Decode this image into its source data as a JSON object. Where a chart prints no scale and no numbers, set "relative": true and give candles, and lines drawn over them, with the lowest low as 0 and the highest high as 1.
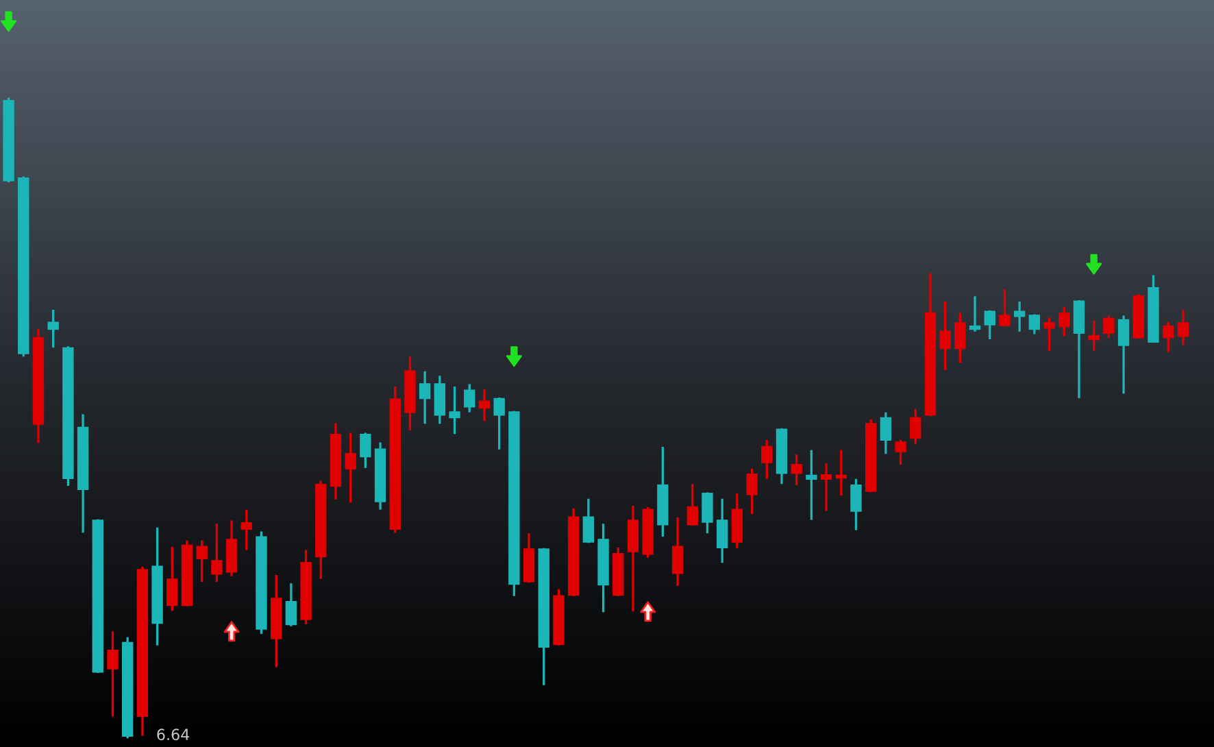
{
  "chart_data": {
    "type": "candlestick",
    "relative": true,
    "categories": [
      null,
      null,
      null,
      null,
      null,
      null,
      null,
      null,
      null,
      null,
      null,
      null,
      null,
      null,
      null,
      null,
      null,
      null,
      null,
      null,
      null,
      null,
      null,
      null,
      null,
      null,
      null,
      null,
      null,
      null,
      null,
      null,
      null,
      null,
      null,
      null,
      null,
      null,
      null,
      null,
      null,
      null,
      null,
      null,
      null,
      null,
      null,
      null,
      null,
      null,
      null,
      null,
      null,
      null,
      null,
      null,
      null,
      null,
      null,
      null,
      null,
      null,
      null,
      null,
      null,
      null,
      null,
      null,
      null,
      null,
      null,
      null,
      null,
      null,
      null,
      null,
      null,
      null,
      null,
      null
    ],
    "ohlc": [
      [
        0.995,
        1.0,
        0.868,
        0.871
      ],
      [
        0.874,
        0.877,
        0.596,
        0.601
      ],
      [
        0.491,
        0.639,
        0.461,
        0.625
      ],
      [
        0.649,
        0.669,
        0.61,
        0.639
      ],
      [
        0.609,
        0.612,
        0.394,
        0.406
      ],
      [
        0.485,
        0.506,
        0.321,
        0.389
      ],
      [
        0.34,
        0.342,
        0.102,
        0.104
      ],
      [
        0.109,
        0.167,
        0.034,
        0.137
      ],
      [
        0.149,
        0.158,
        0.0,
        0.004
      ],
      [
        0.035,
        0.268,
        0.004,
        0.263
      ],
      [
        0.268,
        0.329,
        0.145,
        0.18
      ],
      [
        0.208,
        0.299,
        0.199,
        0.248
      ],
      [
        0.208,
        0.309,
        0.206,
        0.301
      ],
      [
        0.281,
        0.309,
        0.244,
        0.299
      ],
      [
        0.257,
        0.335,
        0.244,
        0.277
      ],
      [
        0.26,
        0.34,
        0.253,
        0.31
      ],
      [
        0.327,
        0.357,
        0.294,
        0.336
      ],
      [
        0.314,
        0.323,
        0.163,
        0.171
      ],
      [
        0.156,
        0.255,
        0.111,
        0.218
      ],
      [
        0.213,
        0.242,
        0.175,
        0.178
      ],
      [
        0.186,
        0.294,
        0.178,
        0.274
      ],
      [
        0.284,
        0.402,
        0.249,
        0.396
      ],
      [
        0.394,
        0.492,
        0.373,
        0.474
      ],
      [
        0.421,
        0.477,
        0.368,
        0.444
      ],
      [
        0.474,
        0.477,
        0.422,
        0.44
      ],
      [
        0.451,
        0.462,
        0.357,
        0.37
      ],
      [
        0.327,
        0.549,
        0.321,
        0.529
      ],
      [
        0.509,
        0.596,
        0.481,
        0.573
      ],
      [
        0.553,
        0.573,
        0.491,
        0.531
      ],
      [
        0.553,
        0.566,
        0.491,
        0.505
      ],
      [
        0.509,
        0.549,
        0.475,
        0.501
      ],
      [
        0.543,
        0.553,
        0.509,
        0.518
      ],
      [
        0.516,
        0.545,
        0.495,
        0.526
      ],
      [
        0.53,
        0.532,
        0.451,
        0.505
      ],
      [
        0.509,
        0.511,
        0.222,
        0.241
      ],
      [
        0.245,
        0.32,
        0.243,
        0.295
      ],
      [
        0.295,
        0.297,
        0.083,
        0.143
      ],
      [
        0.147,
        0.233,
        0.145,
        0.222
      ],
      [
        0.224,
        0.359,
        0.222,
        0.345
      ],
      [
        0.345,
        0.374,
        0.305,
        0.307
      ],
      [
        0.31,
        0.335,
        0.197,
        0.24
      ],
      [
        0.224,
        0.298,
        0.222,
        0.288
      ],
      [
        0.292,
        0.363,
        0.198,
        0.34
      ],
      [
        0.288,
        0.361,
        0.282,
        0.357
      ],
      [
        0.395,
        0.455,
        0.315,
        0.334
      ],
      [
        0.258,
        0.345,
        0.238,
        0.299
      ],
      [
        0.334,
        0.397,
        0.332,
        0.361
      ],
      [
        0.382,
        0.384,
        0.32,
        0.338
      ],
      [
        0.34,
        0.374,
        0.274,
        0.298
      ],
      [
        0.307,
        0.382,
        0.297,
        0.357
      ],
      [
        0.381,
        0.421,
        0.35,
        0.412
      ],
      [
        0.431,
        0.466,
        0.405,
        0.455
      ],
      [
        0.482,
        0.484,
        0.397,
        0.414
      ],
      [
        0.414,
        0.443,
        0.395,
        0.427
      ],
      [
        0.41,
        0.45,
        0.341,
        0.405
      ],
      [
        0.405,
        0.429,
        0.355,
        0.411
      ],
      [
        0.407,
        0.45,
        0.379,
        0.41
      ],
      [
        0.395,
        0.405,
        0.325,
        0.355
      ],
      [
        0.386,
        0.498,
        0.384,
        0.491
      ],
      [
        0.5,
        0.509,
        0.444,
        0.466
      ],
      [
        0.448,
        0.466,
        0.427,
        0.462
      ],
      [
        0.469,
        0.514,
        0.459,
        0.5
      ],
      [
        0.505,
        0.726,
        0.503,
        0.664
      ],
      [
        0.609,
        0.682,
        0.575,
        0.635
      ],
      [
        0.609,
        0.664,
        0.586,
        0.648
      ],
      [
        0.643,
        0.69,
        0.635,
        0.639
      ],
      [
        0.666,
        0.668,
        0.623,
        0.646
      ],
      [
        0.645,
        0.701,
        0.643,
        0.66
      ],
      [
        0.666,
        0.682,
        0.635,
        0.659
      ],
      [
        0.66,
        0.662,
        0.631,
        0.639
      ],
      [
        0.641,
        0.657,
        0.605,
        0.648
      ],
      [
        0.643,
        0.673,
        0.628,
        0.663
      ],
      [
        0.682,
        0.684,
        0.531,
        0.633
      ],
      [
        0.623,
        0.652,
        0.605,
        0.628
      ],
      [
        0.633,
        0.66,
        0.625,
        0.655
      ],
      [
        0.653,
        0.66,
        0.538,
        0.614
      ],
      [
        0.626,
        0.693,
        0.624,
        0.69
      ],
      [
        0.703,
        0.723,
        0.618,
        0.619
      ],
      [
        0.626,
        0.65,
        0.603,
        0.643
      ],
      [
        0.628,
        0.669,
        0.614,
        0.648
      ]
    ],
    "colors": [
      "#1cb5b8",
      "#1cb5b8",
      "#e10000",
      "#1cb5b8",
      "#1cb5b8",
      "#1cb5b8",
      "#1cb5b8",
      "#e10000",
      "#1cb5b8",
      "#e10000",
      "#1cb5b8",
      "#e10000",
      "#e10000",
      "#e10000",
      "#e10000",
      "#e10000",
      "#e10000",
      "#1cb5b8",
      "#e10000",
      "#1cb5b8",
      "#e10000",
      "#e10000",
      "#e10000",
      "#e10000",
      "#1cb5b8",
      "#1cb5b8",
      "#e10000",
      "#e10000",
      "#1cb5b8",
      "#1cb5b8",
      "#1cb5b8",
      "#1cb5b8",
      "#e10000",
      "#1cb5b8",
      "#1cb5b8",
      "#e10000",
      "#1cb5b8",
      "#e10000",
      "#e10000",
      "#1cb5b8",
      "#1cb5b8",
      "#e10000",
      "#e10000",
      "#e10000",
      "#1cb5b8",
      "#e10000",
      "#e10000",
      "#1cb5b8",
      "#1cb5b8",
      "#e10000",
      "#e10000",
      "#e10000",
      "#1cb5b8",
      "#e10000",
      "#1cb5b8",
      "#e10000",
      "#e10000",
      "#1cb5b8",
      "#e10000",
      "#1cb5b8",
      "#e10000",
      "#e10000",
      "#e10000",
      "#e10000",
      "#e10000",
      "#1cb5b8",
      "#1cb5b8",
      "#e10000",
      "#1cb5b8",
      "#1cb5b8",
      "#e10000",
      "#e10000",
      "#1cb5b8",
      "#e10000",
      "#e10000",
      "#1cb5b8",
      "#e10000",
      "#1cb5b8",
      "#e10000",
      "#e10000"
    ],
    "series": [
      {
        "type": "scatter",
        "color": "#22e022",
        "values": [
          null,
          null,
          null,
          null,
          null,
          null,
          null,
          null,
          null,
          null,
          null,
          null,
          null,
          null,
          null,
          null,
          null,
          null,
          null,
          null,
          null,
          null,
          null,
          null,
          null,
          null,
          null,
          null,
          null,
          null,
          null,
          null,
          null,
          null,
          0.596,
          null,
          null,
          null,
          null,
          null,
          null,
          null,
          null,
          null,
          null,
          null,
          null,
          null,
          null,
          null,
          null,
          null,
          null,
          null,
          null,
          null,
          null,
          null,
          null,
          null,
          null,
          null,
          null,
          null,
          null,
          null,
          null,
          null,
          null,
          null,
          null,
          null,
          null,
          0.74,
          null,
          null,
          null,
          null,
          null,
          null
        ]
      },
      {
        "type": "scatter",
        "color": "#f02020",
        "values": [
          null,
          null,
          null,
          null,
          null,
          null,
          null,
          null,
          null,
          null,
          null,
          null,
          null,
          null,
          null,
          0.167,
          null,
          null,
          null,
          null,
          null,
          null,
          null,
          null,
          null,
          null,
          null,
          null,
          null,
          null,
          null,
          null,
          null,
          null,
          null,
          null,
          null,
          null,
          null,
          null,
          null,
          null,
          null,
          0.198,
          null,
          null,
          null,
          null,
          null,
          null,
          null,
          null,
          null,
          null,
          null,
          null,
          null,
          null,
          null,
          null,
          null,
          null,
          null,
          null,
          null,
          null,
          null,
          null,
          null,
          null,
          null,
          null,
          null,
          null,
          null,
          null,
          null,
          null,
          null,
          null
        ]
      }
    ],
    "annotations": [
      "6.64"
    ]
  }
}
